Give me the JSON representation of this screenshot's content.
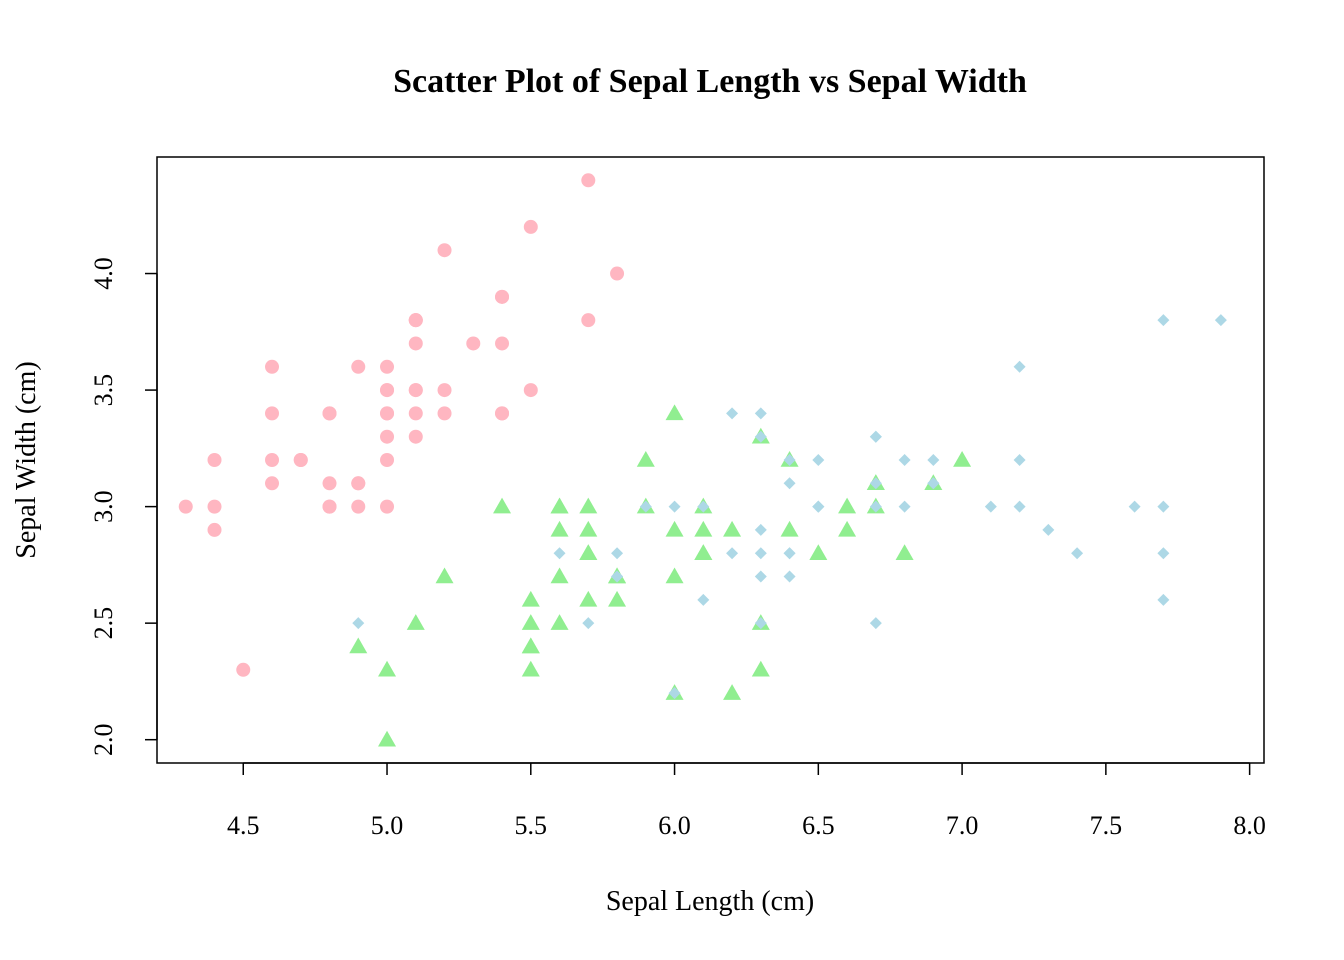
{
  "chart_data": {
    "type": "scatter",
    "title": "Scatter Plot of Sepal Length vs Sepal Width",
    "xlabel": "Sepal Length (cm)",
    "ylabel": "Sepal Width (cm)",
    "xlim": [
      4.2,
      8.05
    ],
    "ylim": [
      1.9,
      4.5
    ],
    "xticks": [
      4.5,
      5.0,
      5.5,
      6.0,
      6.5,
      7.0,
      7.5,
      8.0
    ],
    "xtick_labels": [
      "4.5",
      "5.0",
      "5.5",
      "6.0",
      "6.5",
      "7.0",
      "7.5",
      "8.0"
    ],
    "yticks": [
      2.0,
      2.5,
      3.0,
      3.5,
      4.0
    ],
    "ytick_labels": [
      "2.0",
      "2.5",
      "3.0",
      "3.5",
      "4.0"
    ],
    "grid": false,
    "legend": "none",
    "series": [
      {
        "marker": "circle",
        "color": "#FFB6C1",
        "points": [
          [
            5.1,
            3.5
          ],
          [
            4.9,
            3.0
          ],
          [
            4.7,
            3.2
          ],
          [
            4.6,
            3.1
          ],
          [
            5.0,
            3.6
          ],
          [
            5.4,
            3.9
          ],
          [
            4.6,
            3.4
          ],
          [
            5.0,
            3.4
          ],
          [
            4.4,
            2.9
          ],
          [
            4.9,
            3.1
          ],
          [
            5.4,
            3.7
          ],
          [
            4.8,
            3.4
          ],
          [
            4.8,
            3.0
          ],
          [
            4.3,
            3.0
          ],
          [
            5.8,
            4.0
          ],
          [
            5.7,
            4.4
          ],
          [
            5.4,
            3.9
          ],
          [
            5.1,
            3.5
          ],
          [
            5.7,
            3.8
          ],
          [
            5.1,
            3.8
          ],
          [
            5.4,
            3.4
          ],
          [
            5.1,
            3.7
          ],
          [
            4.6,
            3.6
          ],
          [
            5.1,
            3.3
          ],
          [
            4.8,
            3.4
          ],
          [
            5.0,
            3.0
          ],
          [
            5.0,
            3.4
          ],
          [
            5.2,
            3.5
          ],
          [
            5.2,
            3.4
          ],
          [
            4.7,
            3.2
          ],
          [
            4.8,
            3.1
          ],
          [
            5.4,
            3.4
          ],
          [
            5.2,
            4.1
          ],
          [
            5.5,
            4.2
          ],
          [
            4.9,
            3.1
          ],
          [
            5.0,
            3.2
          ],
          [
            5.5,
            3.5
          ],
          [
            4.9,
            3.6
          ],
          [
            4.4,
            3.0
          ],
          [
            5.1,
            3.4
          ],
          [
            5.0,
            3.5
          ],
          [
            4.5,
            2.3
          ],
          [
            4.4,
            3.2
          ],
          [
            5.0,
            3.5
          ],
          [
            5.1,
            3.8
          ],
          [
            4.8,
            3.0
          ],
          [
            5.1,
            3.8
          ],
          [
            4.6,
            3.2
          ],
          [
            5.3,
            3.7
          ],
          [
            5.0,
            3.3
          ]
        ]
      },
      {
        "marker": "triangle",
        "color": "#90EE90",
        "points": [
          [
            7.0,
            3.2
          ],
          [
            6.4,
            3.2
          ],
          [
            6.9,
            3.1
          ],
          [
            5.5,
            2.3
          ],
          [
            6.5,
            2.8
          ],
          [
            5.7,
            2.8
          ],
          [
            6.3,
            3.3
          ],
          [
            4.9,
            2.4
          ],
          [
            6.6,
            2.9
          ],
          [
            5.2,
            2.7
          ],
          [
            5.0,
            2.0
          ],
          [
            5.9,
            3.0
          ],
          [
            6.0,
            2.2
          ],
          [
            6.1,
            2.9
          ],
          [
            5.6,
            2.9
          ],
          [
            6.7,
            3.1
          ],
          [
            5.6,
            3.0
          ],
          [
            5.8,
            2.7
          ],
          [
            6.2,
            2.2
          ],
          [
            5.6,
            2.5
          ],
          [
            5.9,
            3.2
          ],
          [
            6.1,
            2.8
          ],
          [
            6.3,
            2.5
          ],
          [
            6.1,
            2.8
          ],
          [
            6.4,
            2.9
          ],
          [
            6.6,
            3.0
          ],
          [
            6.8,
            2.8
          ],
          [
            6.7,
            3.0
          ],
          [
            6.0,
            2.9
          ],
          [
            5.7,
            2.6
          ],
          [
            5.5,
            2.4
          ],
          [
            5.5,
            2.4
          ],
          [
            5.8,
            2.7
          ],
          [
            6.0,
            2.7
          ],
          [
            5.4,
            3.0
          ],
          [
            6.0,
            3.4
          ],
          [
            6.7,
            3.1
          ],
          [
            6.3,
            2.3
          ],
          [
            5.6,
            3.0
          ],
          [
            5.5,
            2.5
          ],
          [
            5.5,
            2.6
          ],
          [
            6.1,
            3.0
          ],
          [
            5.8,
            2.6
          ],
          [
            5.0,
            2.3
          ],
          [
            5.6,
            2.7
          ],
          [
            5.7,
            3.0
          ],
          [
            5.7,
            2.9
          ],
          [
            6.2,
            2.9
          ],
          [
            5.1,
            2.5
          ],
          [
            5.7,
            2.8
          ]
        ]
      },
      {
        "marker": "diamond",
        "color": "#ADD8E6",
        "points": [
          [
            6.3,
            3.3
          ],
          [
            5.8,
            2.7
          ],
          [
            7.1,
            3.0
          ],
          [
            6.3,
            2.9
          ],
          [
            6.5,
            3.0
          ],
          [
            7.6,
            3.0
          ],
          [
            4.9,
            2.5
          ],
          [
            7.3,
            2.9
          ],
          [
            6.7,
            2.5
          ],
          [
            7.2,
            3.6
          ],
          [
            6.5,
            3.2
          ],
          [
            6.4,
            2.7
          ],
          [
            6.8,
            3.0
          ],
          [
            5.7,
            2.5
          ],
          [
            5.8,
            2.8
          ],
          [
            6.4,
            3.2
          ],
          [
            6.5,
            3.0
          ],
          [
            7.7,
            3.8
          ],
          [
            7.7,
            2.6
          ],
          [
            6.0,
            2.2
          ],
          [
            6.9,
            3.2
          ],
          [
            5.6,
            2.8
          ],
          [
            7.7,
            2.8
          ],
          [
            6.3,
            2.7
          ],
          [
            6.7,
            3.3
          ],
          [
            7.2,
            3.2
          ],
          [
            6.2,
            2.8
          ],
          [
            6.1,
            3.0
          ],
          [
            6.4,
            2.8
          ],
          [
            7.2,
            3.0
          ],
          [
            7.4,
            2.8
          ],
          [
            7.9,
            3.8
          ],
          [
            6.4,
            2.8
          ],
          [
            6.3,
            2.8
          ],
          [
            6.1,
            2.6
          ],
          [
            7.7,
            3.0
          ],
          [
            6.3,
            3.4
          ],
          [
            6.4,
            3.1
          ],
          [
            6.0,
            3.0
          ],
          [
            6.9,
            3.1
          ],
          [
            6.7,
            3.1
          ],
          [
            6.9,
            3.1
          ],
          [
            5.8,
            2.7
          ],
          [
            6.8,
            3.2
          ],
          [
            6.7,
            3.3
          ],
          [
            6.7,
            3.0
          ],
          [
            6.3,
            2.5
          ],
          [
            6.5,
            3.0
          ],
          [
            6.2,
            3.4
          ],
          [
            5.9,
            3.0
          ]
        ]
      }
    ]
  }
}
